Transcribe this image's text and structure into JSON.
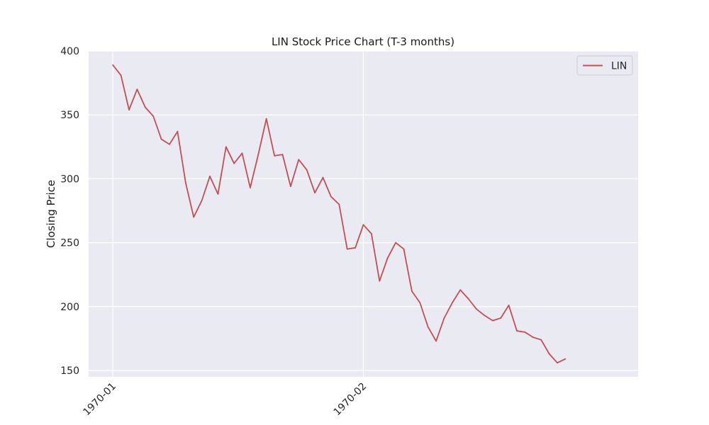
{
  "chart_data": {
    "type": "line",
    "title": "LIN Stock Price Chart (T-3 months)",
    "xlabel": "",
    "ylabel": "Closing Price",
    "ylim": [
      145,
      400
    ],
    "yticks": [
      150,
      200,
      250,
      300,
      350,
      400
    ],
    "xlim": [
      "1969-12-29",
      "1970-03-07"
    ],
    "xticks": [
      {
        "date": "1970-01-01",
        "label": "1970-01"
      },
      {
        "date": "1970-02-01",
        "label": "1970-02"
      }
    ],
    "grid": true,
    "legend": "top-right",
    "background": "#eaeaf2",
    "series": [
      {
        "name": "LIN",
        "color": "#c44e52",
        "points": [
          [
            "1970-01-01",
            389
          ],
          [
            "1970-01-02",
            381
          ],
          [
            "1970-01-03",
            354
          ],
          [
            "1970-01-04",
            370
          ],
          [
            "1970-01-05",
            356
          ],
          [
            "1970-01-06",
            349
          ],
          [
            "1970-01-07",
            331
          ],
          [
            "1970-01-08",
            327
          ],
          [
            "1970-01-09",
            337
          ],
          [
            "1970-01-10",
            297
          ],
          [
            "1970-01-11",
            270
          ],
          [
            "1970-01-12",
            283
          ],
          [
            "1970-01-13",
            302
          ],
          [
            "1970-01-14",
            288
          ],
          [
            "1970-01-15",
            325
          ],
          [
            "1970-01-16",
            312
          ],
          [
            "1970-01-17",
            320
          ],
          [
            "1970-01-18",
            293
          ],
          [
            "1970-01-19",
            319
          ],
          [
            "1970-01-20",
            347
          ],
          [
            "1970-01-21",
            318
          ],
          [
            "1970-01-22",
            319
          ],
          [
            "1970-01-23",
            294
          ],
          [
            "1970-01-24",
            315
          ],
          [
            "1970-01-25",
            307
          ],
          [
            "1970-01-26",
            289
          ],
          [
            "1970-01-27",
            301
          ],
          [
            "1970-01-28",
            286
          ],
          [
            "1970-01-29",
            280
          ],
          [
            "1970-01-30",
            245
          ],
          [
            "1970-01-31",
            246
          ],
          [
            "1970-02-01",
            264
          ],
          [
            "1970-02-02",
            257
          ],
          [
            "1970-02-03",
            220
          ],
          [
            "1970-02-04",
            238
          ],
          [
            "1970-02-05",
            250
          ],
          [
            "1970-02-06",
            245
          ],
          [
            "1970-02-07",
            212
          ],
          [
            "1970-02-08",
            203
          ],
          [
            "1970-02-09",
            184
          ],
          [
            "1970-02-10",
            173
          ],
          [
            "1970-02-11",
            191
          ],
          [
            "1970-02-12",
            203
          ],
          [
            "1970-02-13",
            213
          ],
          [
            "1970-02-14",
            206
          ],
          [
            "1970-02-15",
            198
          ],
          [
            "1970-02-16",
            193
          ],
          [
            "1970-02-17",
            189
          ],
          [
            "1970-02-18",
            191
          ],
          [
            "1970-02-19",
            201
          ],
          [
            "1970-02-20",
            181
          ],
          [
            "1970-02-21",
            180
          ],
          [
            "1970-02-22",
            176
          ],
          [
            "1970-02-23",
            174
          ],
          [
            "1970-02-24",
            163
          ],
          [
            "1970-02-25",
            156
          ],
          [
            "1970-02-26",
            159
          ]
        ]
      }
    ]
  }
}
